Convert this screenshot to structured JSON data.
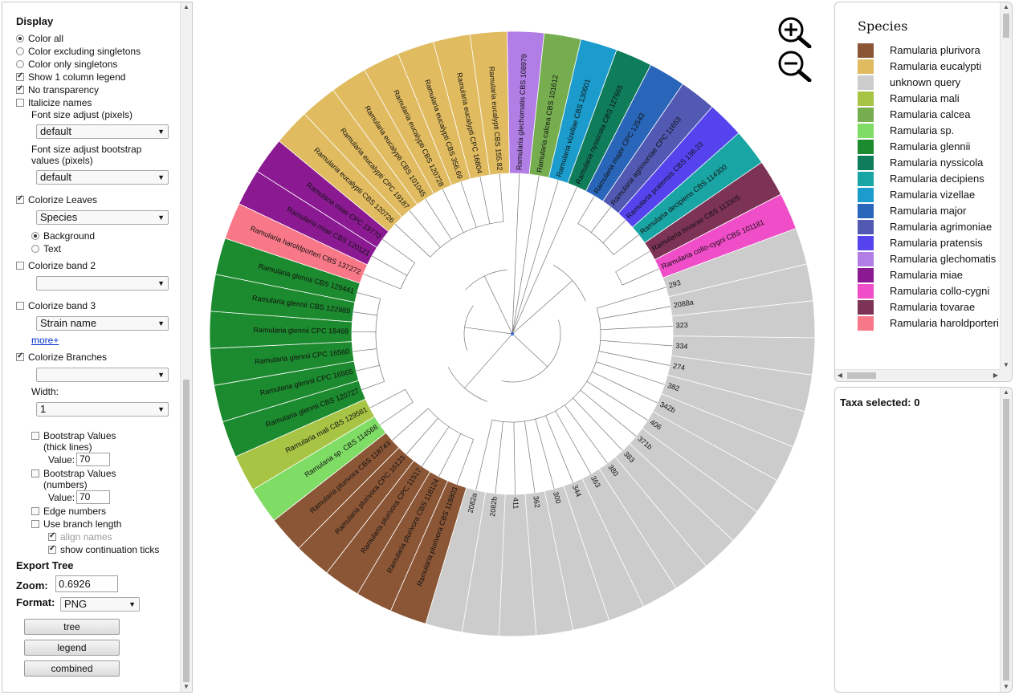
{
  "sidebar": {
    "display_header": "Display",
    "color_all": "Color all",
    "color_excluding_singletons": "Color excluding singletons",
    "color_only_singletons": "Color only singletons",
    "show_1_column_legend": "Show 1 column legend",
    "no_transparency": "No transparency",
    "italicize_names": "Italicize names",
    "font_size_adjust_label": "Font size adjust (pixels)",
    "font_size_adjust_value": "default",
    "font_size_bootstrap_label_1": "Font size adjust bootstrap",
    "font_size_bootstrap_label_2": "values (pixels)",
    "font_size_bootstrap_value": "default",
    "colorize_leaves": "Colorize Leaves",
    "colorize_leaves_value": "Species",
    "background": "Background",
    "text": "Text",
    "colorize_band_2": "Colorize band 2",
    "colorize_band_2_value": "",
    "colorize_band_3": "Colorize band 3",
    "colorize_band_3_value": "Strain name",
    "more_link": "more+",
    "colorize_branches": "Colorize Branches",
    "colorize_branches_value": "",
    "width_label": "Width:",
    "width_value": "1",
    "bootstrap_thick_1": "Bootstrap Values",
    "bootstrap_thick_2": "(thick lines)",
    "bootstrap_numbers_1": "Bootstrap Values",
    "bootstrap_numbers_2": "(numbers)",
    "value_label": "Value:",
    "bootstrap_thick_value": "70",
    "bootstrap_numbers_value": "70",
    "edge_numbers": "Edge numbers",
    "use_branch_length": "Use branch length",
    "align_names": "align names",
    "show_continuation_ticks": "show continuation ticks",
    "export_header": "Export Tree",
    "zoom_label": "Zoom:",
    "zoom_value": "0.6926",
    "format_label": "Format:",
    "format_value": "PNG",
    "btn_tree": "tree",
    "btn_legend": "legend",
    "btn_combined": "combined"
  },
  "legend": {
    "title": "Species",
    "items": [
      {
        "label": "Ramularia plurivora",
        "color": "#8b5636"
      },
      {
        "label": "Ramularia eucalypti",
        "color": "#e0bb60"
      },
      {
        "label": "unknown query",
        "color": "#cccccc"
      },
      {
        "label": "Ramularia mali",
        "color": "#a8c445"
      },
      {
        "label": "Ramularia calcea",
        "color": "#75ad4f"
      },
      {
        "label": "Ramularia sp.",
        "color": "#7fdc65"
      },
      {
        "label": "Ramularia glennii",
        "color": "#1c8a2e"
      },
      {
        "label": "Ramularia nyssicola",
        "color": "#0f7c5a"
      },
      {
        "label": "Ramularia decipiens",
        "color": "#1aa5a5"
      },
      {
        "label": "Ramularia vizellae",
        "color": "#1b9ccc"
      },
      {
        "label": "Ramularia major",
        "color": "#2966b9"
      },
      {
        "label": "Ramularia agrimoniae",
        "color": "#5159b3"
      },
      {
        "label": "Ramularia pratensis",
        "color": "#5544ee"
      },
      {
        "label": "Ramularia glechomatis",
        "color": "#b17ee6"
      },
      {
        "label": "Ramularia miae",
        "color": "#8b1a92"
      },
      {
        "label": "Ramularia collo-cygni",
        "color": "#f04dc8"
      },
      {
        "label": "Ramularia tovarae",
        "color": "#7c3355"
      },
      {
        "label": "Ramularia haroldporteri",
        "color": "#f87888"
      }
    ]
  },
  "taxa": {
    "selected_label": "Taxa selected: 0"
  },
  "zoom_controls": {
    "zoom_in_icon": "zoom-in-icon",
    "zoom_out_icon": "zoom-out-icon"
  },
  "tree": {
    "leaves": [
      {
        "label": "Ramularia glechomatis CBS 108979",
        "species": 13
      },
      {
        "label": "Ramularia calcea CBS 101612",
        "species": 4
      },
      {
        "label": "Ramularia vizellae CBS 130601",
        "species": 9
      },
      {
        "label": "Ramularia nyssicola CBS 127665",
        "species": 7
      },
      {
        "label": "Ramularia major CPC 12543",
        "species": 10
      },
      {
        "label": "Ramularia agrimoniae CPC 11653",
        "species": 11
      },
      {
        "label": "Ramularia pratensis CBS 136.23",
        "species": 12
      },
      {
        "label": "Ramularia decipiens CBS 114300",
        "species": 8
      },
      {
        "label": "Ramularia tovarae CBS 113305",
        "species": 16
      },
      {
        "label": "Ramularia collo-cygni CBS 101181",
        "species": 15
      },
      {
        "label": "293",
        "species": 2
      },
      {
        "label": "2088a",
        "species": 2
      },
      {
        "label": "323",
        "species": 2
      },
      {
        "label": "334",
        "species": 2
      },
      {
        "label": "274",
        "species": 2
      },
      {
        "label": "382",
        "species": 2
      },
      {
        "label": "342b",
        "species": 2
      },
      {
        "label": "406",
        "species": 2
      },
      {
        "label": "371b",
        "species": 2
      },
      {
        "label": "383",
        "species": 2
      },
      {
        "label": "380",
        "species": 2
      },
      {
        "label": "363",
        "species": 2
      },
      {
        "label": "344",
        "species": 2
      },
      {
        "label": "300",
        "species": 2
      },
      {
        "label": "362",
        "species": 2
      },
      {
        "label": "411",
        "species": 2
      },
      {
        "label": "2082b",
        "species": 2
      },
      {
        "label": "2082a",
        "species": 2
      },
      {
        "label": "Ramularia plurivora CBS 118803",
        "species": 0
      },
      {
        "label": "Ramularia plurivora CBS 118124",
        "species": 0
      },
      {
        "label": "Ramularia plurivora CPC 11517",
        "species": 0
      },
      {
        "label": "Ramularia plurivora CPC 16123",
        "species": 0
      },
      {
        "label": "Ramularia plurivora CBS 118743",
        "species": 0
      },
      {
        "label": "Ramularia sp. CBS 114568",
        "species": 5
      },
      {
        "label": "Ramularia mali CBS 129581",
        "species": 3
      },
      {
        "label": "Ramularia glennii CBS 120727",
        "species": 6
      },
      {
        "label": "Ramularia glennii CPC 16565",
        "species": 6
      },
      {
        "label": "Ramularia glennii CPC 16560",
        "species": 6
      },
      {
        "label": "Ramularia glennii CPC 18468",
        "species": 6
      },
      {
        "label": "Ramularia glennii CBS 122989",
        "species": 6
      },
      {
        "label": "Ramularia glennii CBS 129441",
        "species": 6
      },
      {
        "label": "Ramularia haroldporteri CBS 137272",
        "species": 17
      },
      {
        "label": "Ramularia miae CBS 120121",
        "species": 14
      },
      {
        "label": "Ramularia miae CPC 19770",
        "species": 14
      },
      {
        "label": "Ramularia eucalypti CBS 120726",
        "species": 1
      },
      {
        "label": "Ramularia eucalypti CPC 19187",
        "species": 1
      },
      {
        "label": "Ramularia eucalypti CBS 101045",
        "species": 1
      },
      {
        "label": "Ramularia eucalypti CBS 120728",
        "species": 1
      },
      {
        "label": "Ramularia eucalypti CBS 356.69",
        "species": 1
      },
      {
        "label": "Ramularia eucalypti CPC 16804",
        "species": 1
      },
      {
        "label": "Ramularia eucalypti CBS 155.82",
        "species": 1
      }
    ]
  }
}
